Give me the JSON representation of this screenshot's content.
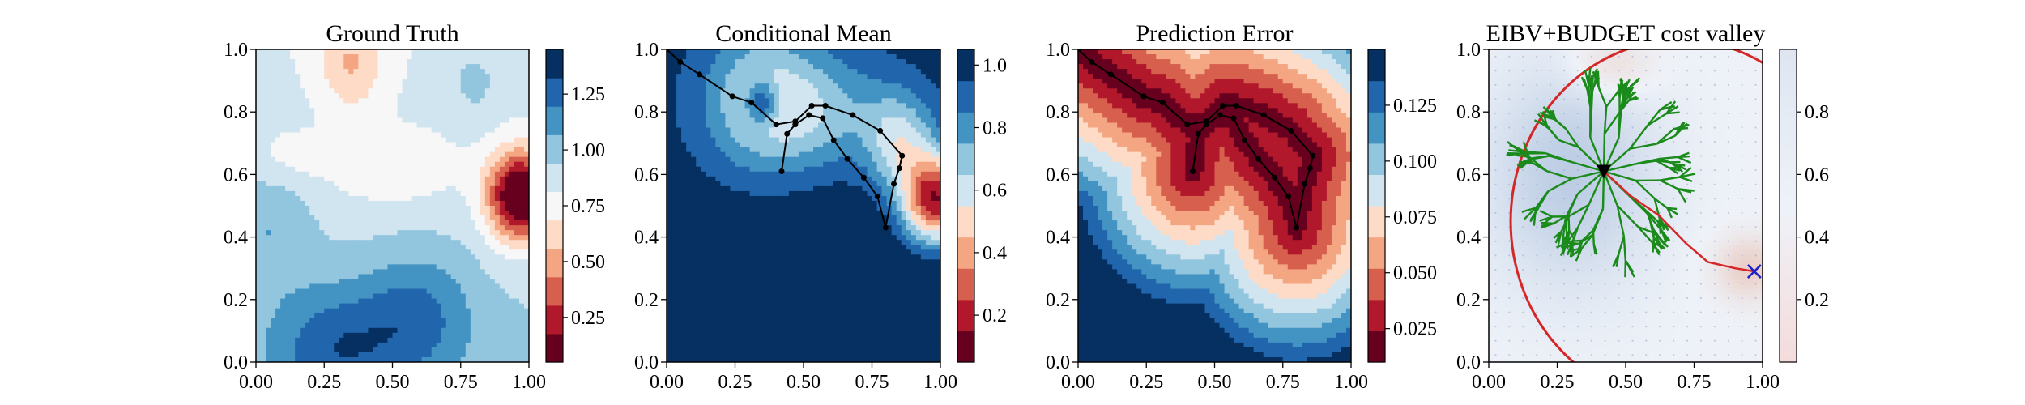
{
  "chart_data": [
    {
      "type": "heatmap",
      "title": "Ground Truth",
      "xlim": [
        0,
        1
      ],
      "ylim": [
        0,
        1
      ],
      "x_ticks": [
        "0.00",
        "0.25",
        "0.50",
        "0.75",
        "1.00"
      ],
      "y_ticks": [
        "0.0",
        "0.2",
        "0.4",
        "0.6",
        "0.8",
        "1.0"
      ],
      "colormap": "RdBu (reversed), discrete levels",
      "colorbar": {
        "range": [
          0.05,
          1.45
        ],
        "levels": 11,
        "ticks": [
          "0.25",
          "0.50",
          "0.75",
          "1.00",
          "1.25"
        ]
      },
      "field_features": [
        {
          "kind": "high",
          "x": 0.9,
          "y": 0.55,
          "value": 0.1
        },
        {
          "kind": "high",
          "x": 0.35,
          "y": 0.95,
          "value": 0.7
        },
        {
          "kind": "low",
          "x": 0.3,
          "y": 0.08,
          "value": 1.4
        },
        {
          "kind": "low",
          "x": 0.6,
          "y": 0.15,
          "value": 1.3
        }
      ],
      "base_value": 0.85
    },
    {
      "type": "heatmap",
      "title": "Conditional Mean",
      "xlim": [
        0,
        1
      ],
      "ylim": [
        0,
        1
      ],
      "x_ticks": [
        "0.00",
        "0.25",
        "0.50",
        "0.75",
        "1.00"
      ],
      "y_ticks": [
        "0.0",
        "0.2",
        "0.4",
        "0.6",
        "0.8",
        "1.0"
      ],
      "colormap": "RdBu (reversed), discrete levels",
      "colorbar": {
        "range": [
          0.05,
          1.05
        ],
        "levels": 10,
        "ticks": [
          "0.2",
          "0.4",
          "0.6",
          "0.8",
          "1.0"
        ]
      },
      "path": {
        "x": [
          0.0,
          0.05,
          0.12,
          0.24,
          0.31,
          0.4,
          0.47,
          0.53,
          0.58,
          0.68,
          0.78,
          0.86,
          0.85,
          0.83,
          0.8,
          0.77,
          0.72,
          0.66,
          0.61,
          0.57,
          0.52,
          0.47,
          0.44,
          0.42
        ],
        "y": [
          1.0,
          0.96,
          0.92,
          0.85,
          0.83,
          0.76,
          0.77,
          0.82,
          0.82,
          0.79,
          0.74,
          0.66,
          0.62,
          0.57,
          0.43,
          0.53,
          0.59,
          0.65,
          0.71,
          0.78,
          0.79,
          0.76,
          0.73,
          0.61
        ]
      }
    },
    {
      "type": "heatmap",
      "title": "Prediction Error",
      "xlim": [
        0,
        1
      ],
      "ylim": [
        0,
        1
      ],
      "x_ticks": [
        "0.00",
        "0.25",
        "0.50",
        "0.75",
        "1.00"
      ],
      "y_ticks": [
        "0.0",
        "0.2",
        "0.4",
        "0.6",
        "0.8",
        "1.0"
      ],
      "colormap": "RdBu (reversed), discrete levels",
      "colorbar": {
        "range": [
          0.01,
          0.15
        ],
        "levels": 10,
        "ticks": [
          "0.025",
          "0.050",
          "0.075",
          "0.100",
          "0.125"
        ]
      },
      "path": "same as Conditional Mean"
    },
    {
      "type": "heatmap",
      "title": "EIBV+BUDGET cost valley",
      "xlim": [
        0,
        1
      ],
      "ylim": [
        0,
        1
      ],
      "x_ticks": [
        "0.00",
        "0.25",
        "0.50",
        "0.75",
        "1.00"
      ],
      "y_ticks": [
        "0.0",
        "0.2",
        "0.4",
        "0.6",
        "0.8",
        "1.0"
      ],
      "colormap": "Blues–white–Reds (light), continuous",
      "colorbar": {
        "range": [
          0,
          1
        ],
        "ticks": [
          "0.2",
          "0.4",
          "0.6",
          "0.8"
        ]
      },
      "current_location": {
        "x": 0.42,
        "y": 0.61
      },
      "target": {
        "x": 0.97,
        "y": 0.29
      },
      "planned_path": {
        "x": [
          0.42,
          0.52,
          0.62,
          0.72,
          0.8,
          0.9,
          0.97
        ],
        "y": [
          0.61,
          0.53,
          0.47,
          0.38,
          0.32,
          0.3,
          0.29
        ]
      },
      "budget_ellipse": {
        "center_x": 0.7,
        "center_y": 0.45,
        "radius_x": 0.62,
        "radius_y": 0.58
      },
      "tree_color": "#1a8a1a",
      "boundary_color": "#d62728",
      "target_color": "#2020c8"
    }
  ]
}
